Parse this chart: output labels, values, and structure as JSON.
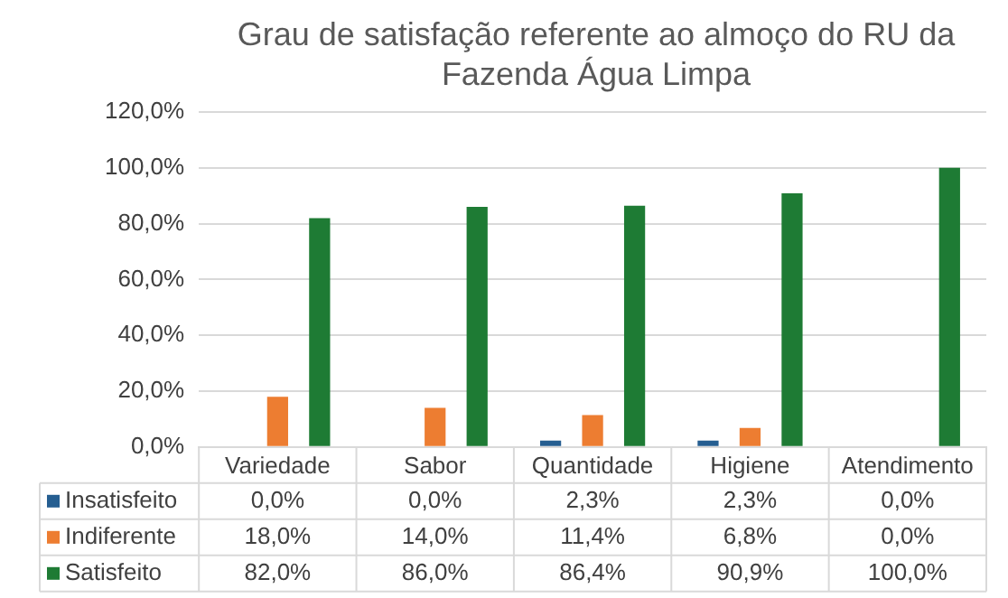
{
  "chart_data": {
    "type": "bar",
    "title": "Grau de satisfação referente ao almoço do RU da Fazenda Água Limpa",
    "categories": [
      "Variedade",
      "Sabor",
      "Quantidade",
      "Higiene",
      "Atendimento"
    ],
    "series": [
      {
        "name": "Insatisfeito",
        "color": "#255e91",
        "values": [
          0.0,
          0.0,
          2.3,
          2.3,
          0.0
        ],
        "value_labels": [
          "0,0%",
          "0,0%",
          "2,3%",
          "2,3%",
          "0,0%"
        ]
      },
      {
        "name": "Indiferente",
        "color": "#ed7d31",
        "values": [
          18.0,
          14.0,
          11.4,
          6.8,
          0.0
        ],
        "value_labels": [
          "18,0%",
          "14,0%",
          "11,4%",
          "6,8%",
          "0,0%"
        ]
      },
      {
        "name": "Satisfeito",
        "color": "#1e7b34",
        "values": [
          82.0,
          86.0,
          86.4,
          90.9,
          100.0
        ],
        "value_labels": [
          "82,0%",
          "86,0%",
          "86,4%",
          "90,9%",
          "100,0%"
        ]
      }
    ],
    "ylim": [
      0,
      120
    ],
    "yticks": [
      {
        "value": 0,
        "label": "0,0%"
      },
      {
        "value": 20,
        "label": "20,0%"
      },
      {
        "value": 40,
        "label": "40,0%"
      },
      {
        "value": 60,
        "label": "60,0%"
      },
      {
        "value": 80,
        "label": "80,0%"
      },
      {
        "value": 100,
        "label": "100,0%"
      },
      {
        "value": 120,
        "label": "120,0%"
      }
    ],
    "grid": "y",
    "legend": "bottom"
  }
}
